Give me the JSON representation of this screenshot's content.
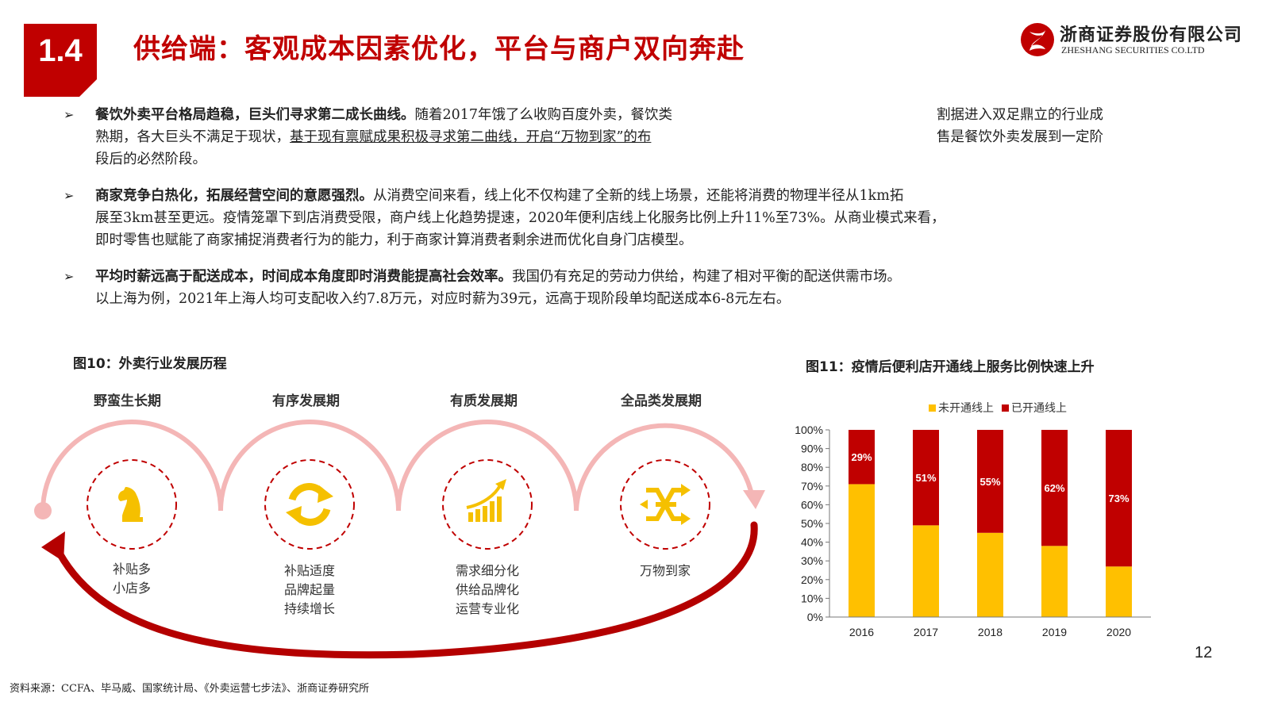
{
  "header": {
    "section_number": "1.4",
    "title": "供给端：客观成本因素优化，平台与商户双向奔赴",
    "company_cn": "浙商证券股份有限公司",
    "company_en": "ZHESHANG SECURITIES CO.LTD",
    "brand_color": "#c00000"
  },
  "bullets": [
    {
      "mark": "➢",
      "lead": "餐饮外卖平台格局趋稳，巨头们寻求第二成长曲线。",
      "lines": [
        "随着2017年饿了么收购百度外卖，餐饮类",
        "熟期，各大巨头不满足于现状，",
        "基于现有禀赋成果积极寻求第二曲线，开启“万物到家”的布",
        "段后的必然阶段。"
      ],
      "side_lines": [
        "割据进入双足鼎立的行业成",
        "售是餐饮外卖发展到一定阶"
      ]
    },
    {
      "mark": "➢",
      "lead": "商家竞争白热化，拓展经营空间的意愿强烈。",
      "lines": [
        "从消费空间来看，线上化不仅构建了全新的线上场景，还能将消费的物理半径从1km拓",
        "展至3km甚至更远。疫情笼罩下到店消费受限，商户线上化趋势提速，2020年便利店线上化服务比例上升11%至73%。从商业模式来看，",
        "即时零售也赋能了商家捕捉消费者行为的能力，利于商家计算消费者剩余进而优化自身门店模型。"
      ]
    },
    {
      "mark": "➢",
      "lead": "平均时薪远高于配送成本，时间成本角度即时消费能提高社会效率。",
      "lines": [
        "我国仍有充足的劳动力供给，构建了相对平衡的配送供需市场。",
        "以上海为例，2021年上海人均可支配收入约7.8万元，对应时薪为39元，远高于现阶段单均配送成本6-8元左右。"
      ]
    }
  ],
  "figure10": {
    "title": "图10：外卖行业发展历程",
    "phases": [
      {
        "name": "野蛮生长期",
        "icon": "chess-knight-icon",
        "desc": [
          "补贴多",
          "小店多"
        ]
      },
      {
        "name": "有序发展期",
        "icon": "refresh-cycle-icon",
        "desc": [
          "补贴适度",
          "品牌起量",
          "持续增长"
        ]
      },
      {
        "name": "有质发展期",
        "icon": "growth-bars-icon",
        "desc": [
          "需求细分化",
          "供给品牌化",
          "运营专业化"
        ]
      },
      {
        "name": "全品类发展期",
        "icon": "shuffle-arrows-icon",
        "desc": [
          "万物到家"
        ]
      }
    ],
    "colors": {
      "arc_light": "#f4b6b6",
      "arc_dark": "#b40000",
      "icon": "#f5c000",
      "dash": "#c00000"
    }
  },
  "figure11": {
    "title": "图11：疫情后便利店开通线上服务比例快速上升"
  },
  "chart_data": {
    "type": "bar",
    "stacked": true,
    "categories": [
      "2016",
      "2017",
      "2018",
      "2019",
      "2020"
    ],
    "series": [
      {
        "name": "未开通线上",
        "values": [
          71,
          49,
          45,
          38,
          27
        ],
        "color": "#ffc000"
      },
      {
        "name": "已开通线上",
        "values": [
          29,
          51,
          55,
          62,
          73
        ],
        "color": "#c00000"
      }
    ],
    "data_labels": [
      "29%",
      "51%",
      "55%",
      "62%",
      "73%"
    ],
    "yticks": [
      "0%",
      "10%",
      "20%",
      "30%",
      "40%",
      "50%",
      "60%",
      "70%",
      "80%",
      "90%",
      "100%"
    ],
    "ylim": [
      0,
      100
    ],
    "legend_position": "top",
    "grid": false
  },
  "footer": {
    "page_number": "12",
    "source": "资料来源：CCFA、毕马威、国家统计局、《外卖运营七步法》、浙商证券研究所"
  }
}
